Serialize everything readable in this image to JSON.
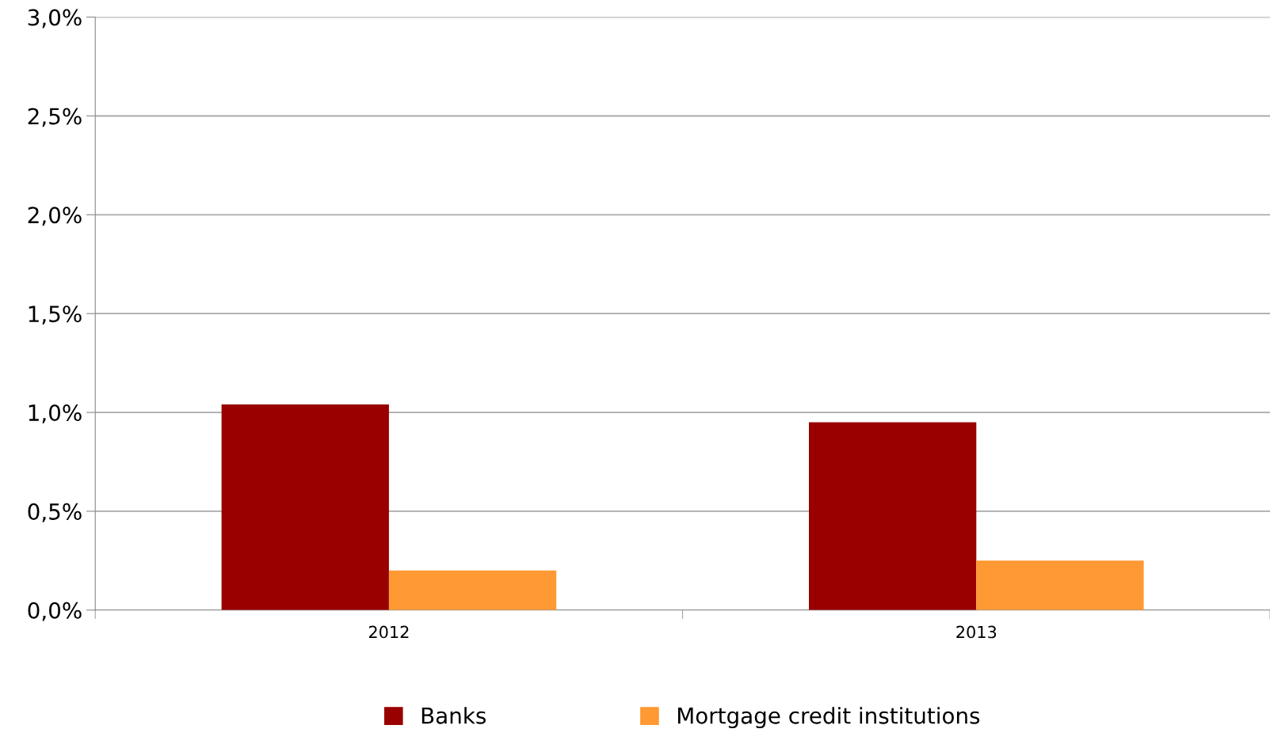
{
  "chart_data": {
    "type": "bar",
    "categories": [
      "2012",
      "2013"
    ],
    "series": [
      {
        "name": "Banks",
        "color": "#990000",
        "values": [
          1.04,
          0.95
        ]
      },
      {
        "name": "Mortgage credit institutions",
        "color": "#ff9933",
        "values": [
          0.2,
          0.25
        ]
      }
    ],
    "ylim": [
      0,
      3
    ],
    "yticks": [
      {
        "value": 0,
        "label": "0,0%"
      },
      {
        "value": 0.5,
        "label": "0,5%"
      },
      {
        "value": 1,
        "label": "1,0%"
      },
      {
        "value": 1.5,
        "label": "1,5%"
      },
      {
        "value": 2,
        "label": "2,0%"
      },
      {
        "value": 2.5,
        "label": "2,5%"
      },
      {
        "value": 3,
        "label": "3,0%"
      }
    ],
    "grid": "y",
    "legend": "bottom"
  }
}
